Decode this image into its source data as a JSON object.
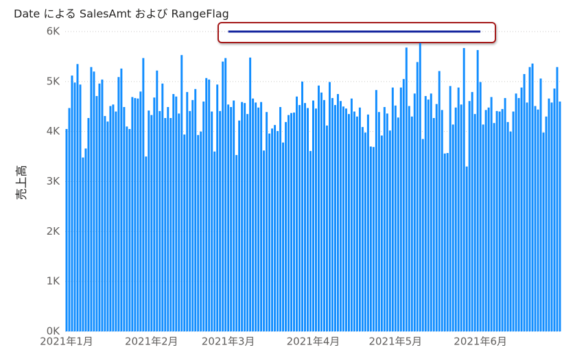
{
  "chart_data": {
    "type": "bar",
    "title": "Date による SalesAmt および RangeFlag",
    "y_label": "売上高",
    "categories": [
      "2021年1月",
      null,
      null,
      null,
      null,
      null,
      null,
      null,
      null,
      null,
      null,
      null,
      null,
      null,
      null,
      null,
      null,
      null,
      null,
      null,
      null,
      null,
      null,
      null,
      null,
      null,
      null,
      null,
      null,
      null,
      null,
      "2021年2月",
      null,
      null,
      null,
      null,
      null,
      null,
      null,
      null,
      null,
      null,
      null,
      null,
      null,
      null,
      null,
      null,
      null,
      null,
      null,
      null,
      null,
      null,
      null,
      null,
      null,
      null,
      null,
      "2021年3月",
      null,
      null,
      null,
      null,
      null,
      null,
      null,
      null,
      null,
      null,
      null,
      null,
      null,
      null,
      null,
      null,
      null,
      null,
      null,
      null,
      null,
      null,
      null,
      null,
      null,
      null,
      null,
      null,
      null,
      null,
      "2021年4月",
      null,
      null,
      null,
      null,
      null,
      null,
      null,
      null,
      null,
      null,
      null,
      null,
      null,
      null,
      null,
      null,
      null,
      null,
      null,
      null,
      null,
      null,
      null,
      null,
      null,
      null,
      null,
      null,
      null,
      "2021年5月",
      null,
      null,
      null,
      null,
      null,
      null,
      null,
      null,
      null,
      null,
      null,
      null,
      null,
      null,
      null,
      null,
      null,
      null,
      null,
      null,
      null,
      null,
      null,
      null,
      null,
      null,
      null,
      null,
      null,
      null,
      "2021年6月",
      null,
      null,
      null,
      null,
      null,
      null,
      null,
      null,
      null,
      null,
      null,
      null,
      null,
      null,
      null,
      null,
      null,
      null,
      null,
      null,
      null,
      null,
      null,
      null,
      null,
      null,
      null,
      null,
      null
    ],
    "series": [
      {
        "name": "SalesAmt",
        "type": "bar",
        "color": "#118dff",
        "values": [
          4050,
          4470,
          5120,
          4980,
          5350,
          4940,
          3480,
          3660,
          4270,
          5290,
          5200,
          4710,
          4960,
          5040,
          4310,
          4200,
          4510,
          4540,
          4400,
          5090,
          5260,
          4490,
          4100,
          4050,
          4690,
          4670,
          4660,
          4800,
          5470,
          3500,
          4420,
          4330,
          4680,
          5220,
          4410,
          4960,
          4270,
          4490,
          4270,
          4750,
          4700,
          4360,
          5530,
          3940,
          4790,
          4410,
          4630,
          4850,
          3930,
          4000,
          4600,
          5070,
          5040,
          4400,
          3600,
          4940,
          4410,
          5400,
          5470,
          4540,
          4490,
          4620,
          3530,
          4220,
          4590,
          4570,
          4350,
          5480,
          4660,
          4580,
          4480,
          4590,
          3620,
          4390,
          3960,
          4060,
          4130,
          4010,
          4490,
          3780,
          4190,
          4330,
          4370,
          4380,
          4700,
          4530,
          5000,
          4570,
          4470,
          3610,
          4620,
          4460,
          4920,
          4780,
          4630,
          4120,
          4990,
          4670,
          4530,
          4750,
          4610,
          4500,
          4460,
          4350,
          4660,
          4400,
          4300,
          4480,
          4090,
          3980,
          4340,
          3700,
          3690,
          4830,
          4390,
          3920,
          4490,
          4360,
          4020,
          4880,
          4520,
          4280,
          4880,
          5050,
          5680,
          4510,
          4300,
          4760,
          5390,
          5770,
          3850,
          4710,
          4640,
          4760,
          4270,
          4550,
          5210,
          4430,
          3560,
          3570,
          4910,
          4140,
          4480,
          4880,
          4540,
          5670,
          3300,
          4610,
          4790,
          4350,
          5630,
          4990,
          4140,
          4430,
          4480,
          4690,
          4170,
          4410,
          4400,
          4450,
          4670,
          4190,
          4000,
          4400,
          4760,
          4670,
          4880,
          5150,
          4580,
          5290,
          5360,
          4510,
          4440,
          5060,
          3980,
          4300,
          4660,
          4580,
          4860,
          5290,
          4600
        ]
      },
      {
        "name": "RangeFlag",
        "type": "line",
        "color": "#12239e",
        "values": [
          null,
          null,
          null,
          null,
          null,
          null,
          null,
          null,
          null,
          null,
          null,
          null,
          null,
          null,
          null,
          null,
          null,
          null,
          null,
          null,
          null,
          null,
          null,
          null,
          null,
          null,
          null,
          null,
          null,
          null,
          null,
          null,
          null,
          null,
          null,
          null,
          null,
          null,
          null,
          null,
          null,
          null,
          null,
          null,
          null,
          null,
          null,
          null,
          null,
          null,
          null,
          null,
          null,
          null,
          null,
          null,
          null,
          null,
          null,
          6000,
          6000,
          6000,
          6000,
          6000,
          6000,
          6000,
          6000,
          6000,
          6000,
          6000,
          6000,
          6000,
          6000,
          6000,
          6000,
          6000,
          6000,
          6000,
          6000,
          6000,
          6000,
          6000,
          6000,
          6000,
          6000,
          6000,
          6000,
          6000,
          6000,
          6000,
          6000,
          6000,
          6000,
          6000,
          6000,
          6000,
          6000,
          6000,
          6000,
          6000,
          6000,
          6000,
          6000,
          6000,
          6000,
          6000,
          6000,
          6000,
          6000,
          6000,
          6000,
          6000,
          6000,
          6000,
          6000,
          6000,
          6000,
          6000,
          6000,
          6000,
          6000,
          6000,
          6000,
          6000,
          6000,
          6000,
          6000,
          6000,
          6000,
          6000,
          6000,
          6000,
          6000,
          6000,
          6000,
          6000,
          6000,
          6000,
          6000,
          6000,
          6000,
          6000,
          6000,
          6000,
          6000,
          6000,
          6000,
          6000,
          6000,
          6000,
          6000,
          6000,
          null,
          null,
          null,
          null,
          null,
          null,
          null,
          null,
          null,
          null,
          null,
          null,
          null,
          null,
          null,
          null,
          null,
          null,
          null,
          null,
          null,
          null,
          null,
          null,
          null,
          null,
          null,
          null,
          null
        ]
      }
    ],
    "ylim": [
      0,
      6000
    ],
    "yticks": [
      {
        "value": 0,
        "label": "0K"
      },
      {
        "value": 1000,
        "label": "1K"
      },
      {
        "value": 2000,
        "label": "2K"
      },
      {
        "value": 3000,
        "label": "3K"
      },
      {
        "value": 4000,
        "label": "4K"
      },
      {
        "value": 5000,
        "label": "5K"
      },
      {
        "value": 6000,
        "label": "6K"
      }
    ],
    "grid": true
  }
}
